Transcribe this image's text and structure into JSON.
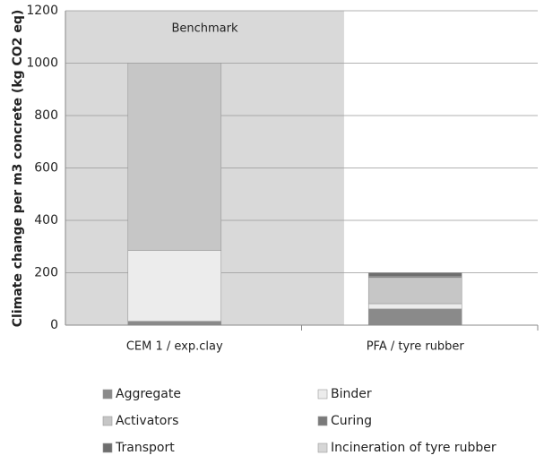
{
  "chart_data": {
    "type": "stacked-bar",
    "y_label": "Climate change per m3 concrete (kg CO2 eq)",
    "annotation": "Benchmark",
    "categories": [
      "CEM 1 / exp.clay",
      "PFA / tyre rubber"
    ],
    "series": [
      {
        "name": "Aggregate",
        "color": "#8a8a8a",
        "values": [
          15,
          62
        ]
      },
      {
        "name": "Binder",
        "color": "#ececec",
        "values": [
          270,
          20
        ]
      },
      {
        "name": "Activators",
        "color": "#c6c6c6",
        "values": [
          715,
          100
        ]
      },
      {
        "name": "Curing",
        "color": "#7a7a7a",
        "values": [
          0,
          5
        ]
      },
      {
        "name": "Transport",
        "color": "#6e6e6e",
        "values": [
          0,
          13
        ]
      },
      {
        "name": "Incineration of tyre rubber",
        "color": "#d6d6d6",
        "values": [
          0,
          0
        ]
      }
    ],
    "ylim": [
      0,
      1200
    ],
    "yticks": [
      0,
      200,
      400,
      600,
      800,
      1000,
      1200
    ],
    "grid": true
  }
}
